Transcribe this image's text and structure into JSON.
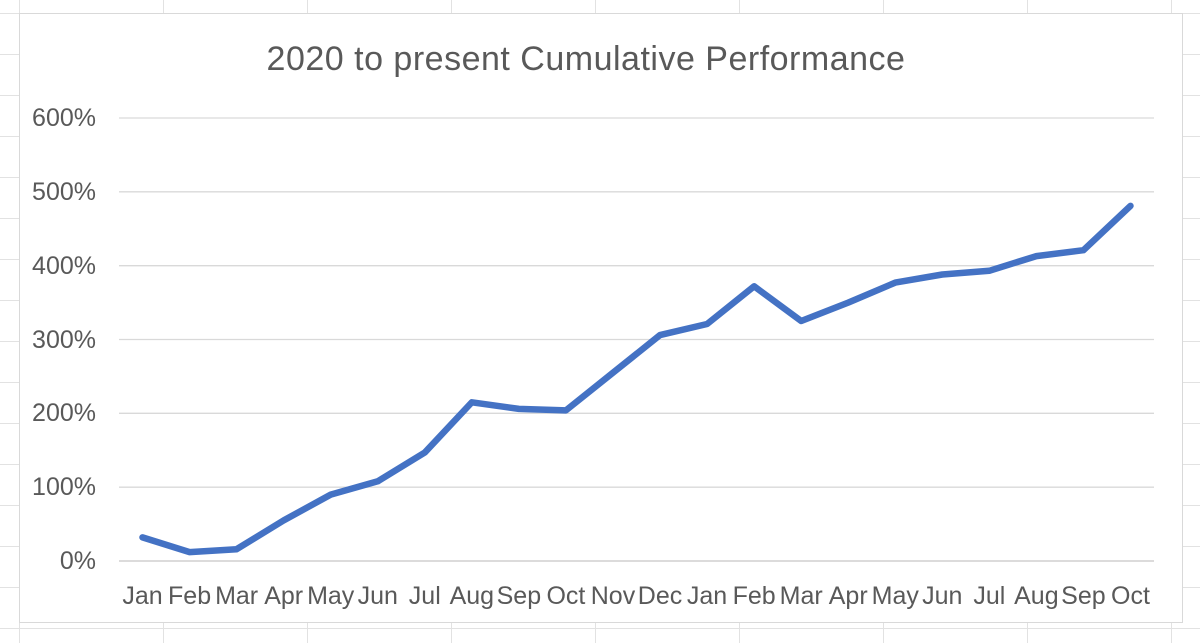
{
  "chart_data": {
    "type": "line",
    "title": "2020 to present Cumulative Performance",
    "categories": [
      "Jan",
      "Feb",
      "Mar",
      "Apr",
      "May",
      "Jun",
      "Jul",
      "Aug",
      "Sep",
      "Oct",
      "Nov",
      "Dec",
      "Jan",
      "Feb",
      "Mar",
      "Apr",
      "May",
      "Jun",
      "Jul",
      "Aug",
      "Sep",
      "Oct"
    ],
    "series": [
      {
        "name": "Cumulative Performance",
        "values": [
          32,
          12,
          16,
          55,
          90,
          108,
          147,
          215,
          206,
          204,
          255,
          306,
          321,
          372,
          325,
          350,
          377,
          388,
          393,
          413,
          421,
          481
        ]
      }
    ],
    "xlabel": "",
    "ylabel": "",
    "ylim": [
      0,
      600
    ],
    "y_tick_values": [
      0,
      100,
      200,
      300,
      400,
      500,
      600
    ],
    "y_tick_labels": [
      "0%",
      "100%",
      "200%",
      "300%",
      "400%",
      "500%",
      "600%"
    ],
    "grid": "horizontal-major",
    "legend": "none",
    "colors": {
      "line": "#4472C4",
      "title_text": "#595959",
      "axis_text": "#595959",
      "gridline": "#d9d9d9",
      "axis_line": "#c7c5c5",
      "chart_border": "#d9d9d9",
      "background": "#ffffff"
    }
  }
}
